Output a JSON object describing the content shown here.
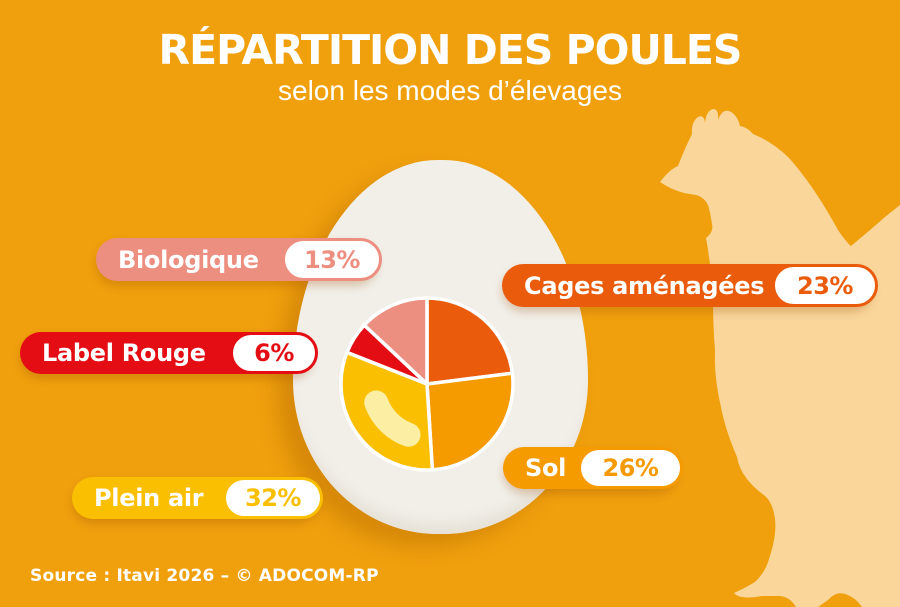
{
  "header": {
    "title": "RÉPARTITION DES POULES",
    "subtitle": "selon les modes d’élevages"
  },
  "chart_data": {
    "type": "pie",
    "title": "Répartition des poules selon les modes d'élevages",
    "unit": "%",
    "start_angle_deg": -90,
    "direction": "clockwise",
    "legend_position": "around",
    "series": [
      {
        "name": "Cages aménagées",
        "value": 23,
        "color": "#EA5C0C"
      },
      {
        "name": "Sol",
        "value": 26,
        "color": "#F59B00"
      },
      {
        "name": "Plein air",
        "value": 32,
        "color": "#FBBF02"
      },
      {
        "name": "Label Rouge",
        "value": 6,
        "color": "#E30D13"
      },
      {
        "name": "Biologique",
        "value": 13,
        "color": "#ED8F80"
      }
    ]
  },
  "legend": {
    "biologique": {
      "label": "Biologique",
      "value": "13%"
    },
    "label_rouge": {
      "label": "Label Rouge",
      "value": "6%"
    },
    "cages": {
      "label": "Cages aménagées",
      "value": "23%"
    },
    "sol": {
      "label": "Sol",
      "value": "26%"
    },
    "plein_air": {
      "label": "Plein air",
      "value": "32%"
    }
  },
  "footer": {
    "source": "Source : Itavi 2026 – © ADOCOM-RP"
  },
  "colors": {
    "background": "#F0A00D",
    "egg_white": "#F2EFE9",
    "egg_bottom_shade": "#E6E1D6",
    "yolk_highlight": "#FCEFA3",
    "hen_silhouette": "#FAD69B",
    "text": "#FFFFFF"
  }
}
